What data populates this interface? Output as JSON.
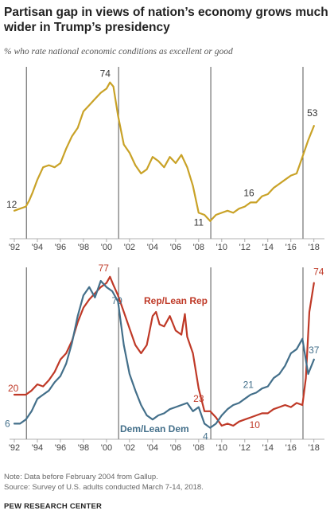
{
  "title": "Partisan gap in views of nation’s economy grows much wider in Trump’s presidency",
  "subtitle": "% who rate national economic conditions as excellent or good",
  "footer": {
    "note": "Note: Data before February 2004 from Gallup.",
    "source": "Source: Survey of U.S. adults conducted March 7-14, 2018.",
    "org": "PEW RESEARCH CENTER"
  },
  "colors": {
    "total": "#c9a227",
    "rep": "#bf3927",
    "dem": "#436f8a",
    "divider": "#555555"
  },
  "chart_data": [
    {
      "type": "line",
      "title": "",
      "x_tick_labels": [
        "'92",
        "'94",
        "'96",
        "'98",
        "'00",
        "'02",
        "'04",
        "'06",
        "'08",
        "'10",
        "'12",
        "'14",
        "'16",
        "'18"
      ],
      "xlim": [
        1992,
        2018.5
      ],
      "ylim": [
        0,
        80
      ],
      "presidency_lines": [
        1993.05,
        2001.05,
        2009.05,
        2017.05
      ],
      "series": [
        {
          "color_key": "total",
          "x": [
            1992,
            1992.5,
            1993,
            1993.3,
            1993.6,
            1994,
            1994.5,
            1995,
            1995.5,
            1996,
            1996.5,
            1997,
            1997.5,
            1998,
            1998.5,
            1999,
            1999.5,
            2000,
            2000.3,
            2000.6,
            2001,
            2001.5,
            2002,
            2002.5,
            2003,
            2003.5,
            2004,
            2004.5,
            2005,
            2005.5,
            2006,
            2006.5,
            2007,
            2007.5,
            2008,
            2008.5,
            2009,
            2009.5,
            2010,
            2010.5,
            2011,
            2011.5,
            2012,
            2012.5,
            2013,
            2013.5,
            2014,
            2014.5,
            2015,
            2015.5,
            2016,
            2016.5,
            2017,
            2017.5,
            2018
          ],
          "y": [
            12,
            13,
            14,
            17,
            21,
            27,
            33,
            34,
            33,
            35,
            42,
            48,
            52,
            60,
            63,
            66,
            69,
            71,
            74,
            72,
            58,
            44,
            40,
            34,
            30,
            32,
            38,
            36,
            33,
            38,
            35,
            39,
            33,
            24,
            11,
            10,
            7,
            10,
            11,
            12,
            11,
            13,
            14,
            16,
            16,
            19,
            20,
            23,
            25,
            27,
            29,
            30,
            38,
            46,
            53
          ]
        }
      ],
      "data_labels": [
        {
          "text": "12",
          "x": 1992,
          "y": 12,
          "color_key": "label"
        },
        {
          "text": "74",
          "x": 2000.3,
          "y": 74,
          "color_key": "label"
        },
        {
          "text": "11",
          "x": 2008,
          "y": 11,
          "color_key": "label"
        },
        {
          "text": "16",
          "x": 2012.5,
          "y": 16,
          "color_key": "label"
        },
        {
          "text": "53",
          "x": 2018,
          "y": 53,
          "color_key": "label"
        }
      ]
    },
    {
      "type": "line",
      "title": "",
      "x_tick_labels": [
        "'92",
        "'94",
        "'96",
        "'98",
        "'00",
        "'02",
        "'04",
        "'06",
        "'08",
        "'10",
        "'12",
        "'14",
        "'16",
        "'18"
      ],
      "xlim": [
        1992,
        2018.5
      ],
      "ylim": [
        0,
        80
      ],
      "presidency_lines": [
        1993.05,
        2001.05,
        2009.05,
        2017.05
      ],
      "series": [
        {
          "name": "Rep/Lean Rep",
          "color_key": "rep",
          "x": [
            1992,
            1992.5,
            1993,
            1993.5,
            1994,
            1994.5,
            1995,
            1995.5,
            1996,
            1996.5,
            1997,
            1997.5,
            1998,
            1998.5,
            1999,
            1999.5,
            2000,
            2000.3,
            2000.6,
            2001,
            2001.5,
            2002,
            2002.5,
            2003,
            2003.5,
            2004,
            2004.3,
            2004.6,
            2005,
            2005.5,
            2006,
            2006.5,
            2006.8,
            2007,
            2007.5,
            2008,
            2008.5,
            2009,
            2009.5,
            2010,
            2010.5,
            2011,
            2011.5,
            2012,
            2012.5,
            2013,
            2013.5,
            2014,
            2014.5,
            2015,
            2015.5,
            2016,
            2016.5,
            2017,
            2017.3,
            2017.6,
            2018
          ],
          "y": [
            20,
            20,
            20,
            22,
            25,
            24,
            27,
            31,
            37,
            40,
            46,
            55,
            62,
            66,
            69,
            72,
            74,
            77,
            73,
            68,
            60,
            52,
            44,
            40,
            44,
            58,
            60,
            54,
            53,
            58,
            51,
            49,
            59,
            48,
            40,
            23,
            12,
            12,
            9,
            5,
            6,
            5,
            7,
            8,
            9,
            10,
            11,
            11,
            13,
            14,
            15,
            14,
            16,
            15,
            28,
            60,
            74
          ]
        },
        {
          "name": "Dem/Lean Dem",
          "color_key": "dem",
          "x": [
            1992,
            1992.5,
            1993,
            1993.5,
            1994,
            1994.5,
            1995,
            1995.5,
            1996,
            1996.5,
            1997,
            1997.5,
            1998,
            1998.5,
            1999,
            1999.5,
            2000,
            2000.5,
            2001,
            2001.5,
            2002,
            2002.5,
            2003,
            2003.5,
            2004,
            2004.5,
            2005,
            2005.5,
            2006,
            2006.5,
            2007,
            2007.5,
            2008,
            2008.5,
            2009,
            2009.5,
            2010,
            2010.5,
            2011,
            2011.5,
            2012,
            2012.5,
            2013,
            2013.5,
            2014,
            2014.5,
            2015,
            2015.5,
            2016,
            2016.5,
            2017,
            2017.5,
            2018
          ],
          "y": [
            6,
            6,
            8,
            12,
            18,
            20,
            22,
            26,
            29,
            35,
            45,
            58,
            68,
            72,
            67,
            75,
            72,
            70,
            65,
            44,
            30,
            22,
            15,
            10,
            8,
            10,
            11,
            13,
            14,
            15,
            16,
            12,
            14,
            6,
            4,
            6,
            10,
            13,
            15,
            16,
            18,
            20,
            21,
            23,
            24,
            28,
            30,
            34,
            40,
            42,
            47,
            30,
            37
          ]
        }
      ],
      "data_labels": [
        {
          "text": "20",
          "x": 1992,
          "y": 20,
          "color_key": "rep"
        },
        {
          "text": "6",
          "x": 1992,
          "y": 6,
          "color_key": "dem"
        },
        {
          "text": "77",
          "x": 2000.3,
          "y": 77,
          "color_key": "rep"
        },
        {
          "text": "70",
          "x": 2000.5,
          "y": 70,
          "color_key": "dem"
        },
        {
          "text": "23",
          "x": 2008,
          "y": 23,
          "color_key": "rep"
        },
        {
          "text": "4",
          "x": 2009,
          "y": 4,
          "color_key": "dem"
        },
        {
          "text": "21",
          "x": 2013,
          "y": 21,
          "color_key": "dem"
        },
        {
          "text": "10",
          "x": 2013,
          "y": 10,
          "color_key": "rep"
        },
        {
          "text": "74",
          "x": 2018,
          "y": 74,
          "color_key": "rep"
        },
        {
          "text": "37",
          "x": 2018,
          "y": 37,
          "color_key": "dem"
        }
      ],
      "series_labels": [
        {
          "text": "Rep/Lean Rep",
          "color_key": "rep"
        },
        {
          "text": "Dem/Lean Dem",
          "color_key": "dem"
        }
      ]
    }
  ]
}
